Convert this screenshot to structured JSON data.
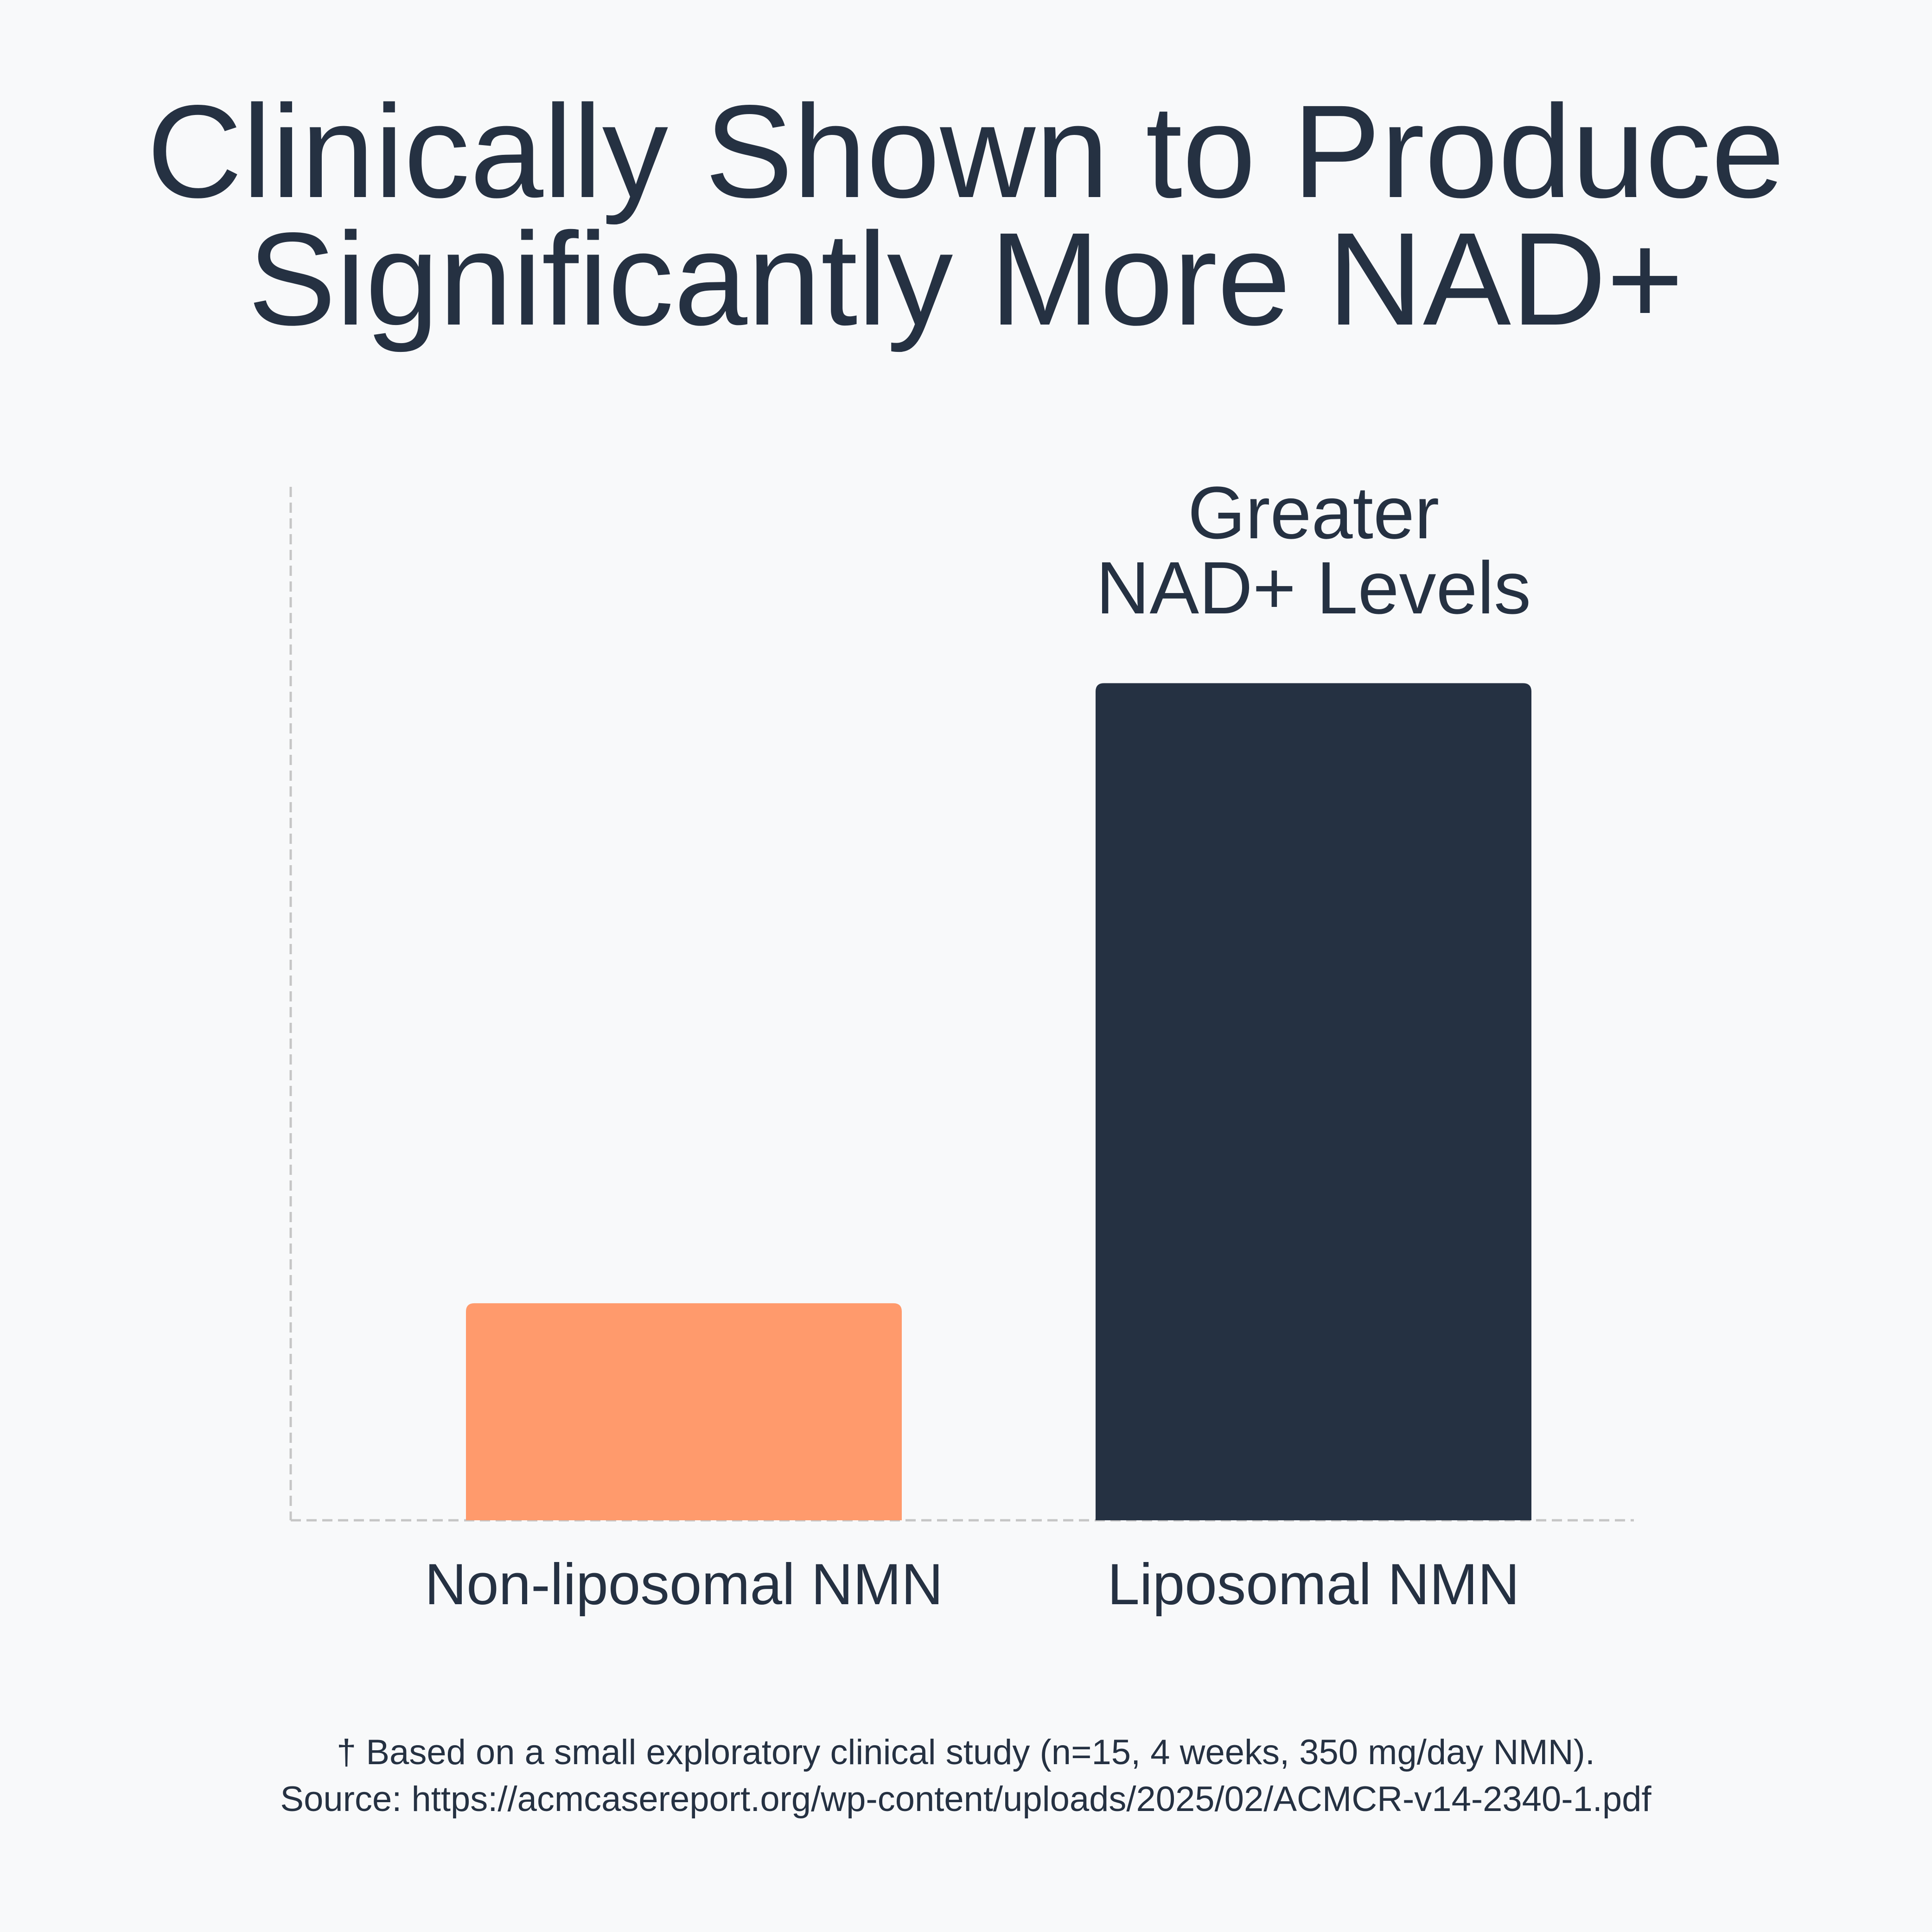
{
  "chart_data": {
    "type": "bar",
    "title": "Clinically Shown to Produce Significantly More NAD+",
    "title_lines": [
      "Clinically Shown to Produce",
      "Significantly More NAD+"
    ],
    "categories": [
      "Non-liposomal NMN",
      "Liposomal NMN"
    ],
    "values": [
      21,
      81
    ],
    "colors": [
      "#ff9a6c",
      "#253142"
    ],
    "ylim": [
      0,
      100
    ],
    "xlabel": "",
    "ylabel": "",
    "grid": false,
    "annotation_lines": [
      "Greater",
      "NAD+ Levels"
    ],
    "footnote_lines": [
      "† Based on a small exploratory clinical study (n=15, 4 weeks, 350 mg/day NMN).",
      "Source: https://acmcasereport.org/wp-content/uploads/2025/02/ACMCR-v14-2340-1.pdf"
    ]
  }
}
